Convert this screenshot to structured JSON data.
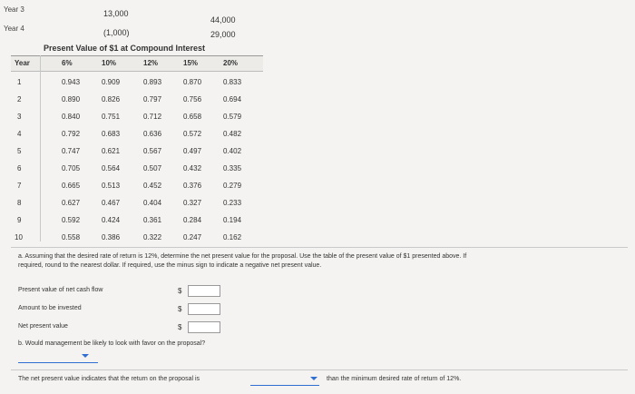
{
  "cash_flows": {
    "rows": [
      {
        "label": "Year 3",
        "col1": "13,000",
        "col2": "44,000"
      },
      {
        "label": "Year 4",
        "col1": "(1,000)",
        "col2": "29,000"
      }
    ]
  },
  "pv_table": {
    "title": "Present Value of $1 at Compound Interest",
    "headers": [
      "Year",
      "6%",
      "10%",
      "12%",
      "15%",
      "20%"
    ],
    "rows": [
      [
        "1",
        "0.943",
        "0.909",
        "0.893",
        "0.870",
        "0.833"
      ],
      [
        "2",
        "0.890",
        "0.826",
        "0.797",
        "0.756",
        "0.694"
      ],
      [
        "3",
        "0.840",
        "0.751",
        "0.712",
        "0.658",
        "0.579"
      ],
      [
        "4",
        "0.792",
        "0.683",
        "0.636",
        "0.572",
        "0.482"
      ],
      [
        "5",
        "0.747",
        "0.621",
        "0.567",
        "0.497",
        "0.402"
      ],
      [
        "6",
        "0.705",
        "0.564",
        "0.507",
        "0.432",
        "0.335"
      ],
      [
        "7",
        "0.665",
        "0.513",
        "0.452",
        "0.376",
        "0.279"
      ],
      [
        "8",
        "0.627",
        "0.467",
        "0.404",
        "0.327",
        "0.233"
      ],
      [
        "9",
        "0.592",
        "0.424",
        "0.361",
        "0.284",
        "0.194"
      ],
      [
        "10",
        "0.558",
        "0.386",
        "0.322",
        "0.247",
        "0.162"
      ]
    ]
  },
  "question_a": {
    "line1": "a. Assuming that the desired rate of return is 12%, determine the net present value for the proposal. Use the table of the present value of $1 presented above. If",
    "line2": "required, round to the nearest dollar. If required, use the minus sign to indicate a negative net present value."
  },
  "form": {
    "fields": [
      {
        "label": "Present value of net cash flow",
        "currency": "$",
        "value": ""
      },
      {
        "label": "Amount to be invested",
        "currency": "$",
        "value": ""
      },
      {
        "label": "Net present value",
        "currency": "$",
        "value": ""
      }
    ]
  },
  "question_b": {
    "text": "b. Would management be likely to look with favor on the proposal?",
    "dropdown_value": "",
    "sentence_start": "The net present value indicates that the return on the proposal is",
    "sentence_dropdown_value": "",
    "sentence_end": "than the minimum desired rate of return of 12%."
  },
  "colors": {
    "background": "#f4f3f1",
    "dropdown_accent": "#2f6fd1"
  }
}
